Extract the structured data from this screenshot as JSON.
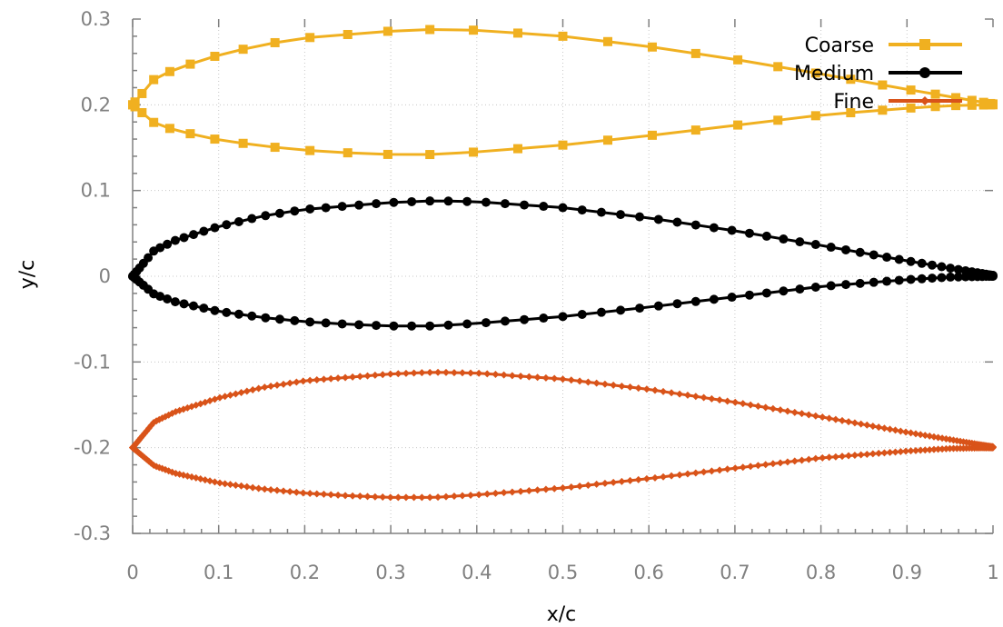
{
  "chart_data": {
    "type": "line",
    "title": "",
    "xlabel": "x/c",
    "ylabel": "y/c",
    "xlim": [
      0,
      1
    ],
    "ylim": [
      -0.3,
      0.3
    ],
    "xticks": [
      "0",
      "0.1",
      "0.2",
      "0.3",
      "0.4",
      "0.5",
      "0.6",
      "0.7",
      "0.8",
      "0.9",
      "1"
    ],
    "yticks": [
      "0.3",
      "0.2",
      "0.1",
      "0",
      "-0.1",
      "-0.2",
      "-0.3"
    ],
    "grid": true,
    "legend_position": "top-right",
    "profile": {
      "upper_x": [
        0,
        0.025,
        0.05,
        0.1,
        0.15,
        0.2,
        0.3,
        0.35,
        0.4,
        0.5,
        0.6,
        0.7,
        0.8,
        0.9,
        1.0
      ],
      "upper_y": [
        0,
        0.03,
        0.042,
        0.058,
        0.07,
        0.078,
        0.086,
        0.088,
        0.087,
        0.08,
        0.068,
        0.053,
        0.036,
        0.018,
        0.001
      ],
      "lower_x": [
        0,
        0.025,
        0.05,
        0.1,
        0.15,
        0.2,
        0.25,
        0.3,
        0.35,
        0.4,
        0.5,
        0.6,
        0.7,
        0.8,
        0.9,
        0.95,
        1.0
      ],
      "lower_y": [
        0,
        -0.021,
        -0.03,
        -0.041,
        -0.048,
        -0.053,
        -0.056,
        -0.058,
        -0.058,
        -0.055,
        -0.047,
        -0.036,
        -0.024,
        -0.012,
        -0.004,
        -0.001,
        0.0
      ]
    },
    "series": [
      {
        "name": "Coarse",
        "offset": 0.2,
        "points": 60,
        "marker": "square",
        "color": "#f0b020"
      },
      {
        "name": "Medium",
        "offset": 0.0,
        "points": 140,
        "marker": "circle",
        "color": "#000000"
      },
      {
        "name": "Fine",
        "offset": -0.2,
        "points": 320,
        "marker": "diamond",
        "color": "#d95319"
      }
    ]
  }
}
